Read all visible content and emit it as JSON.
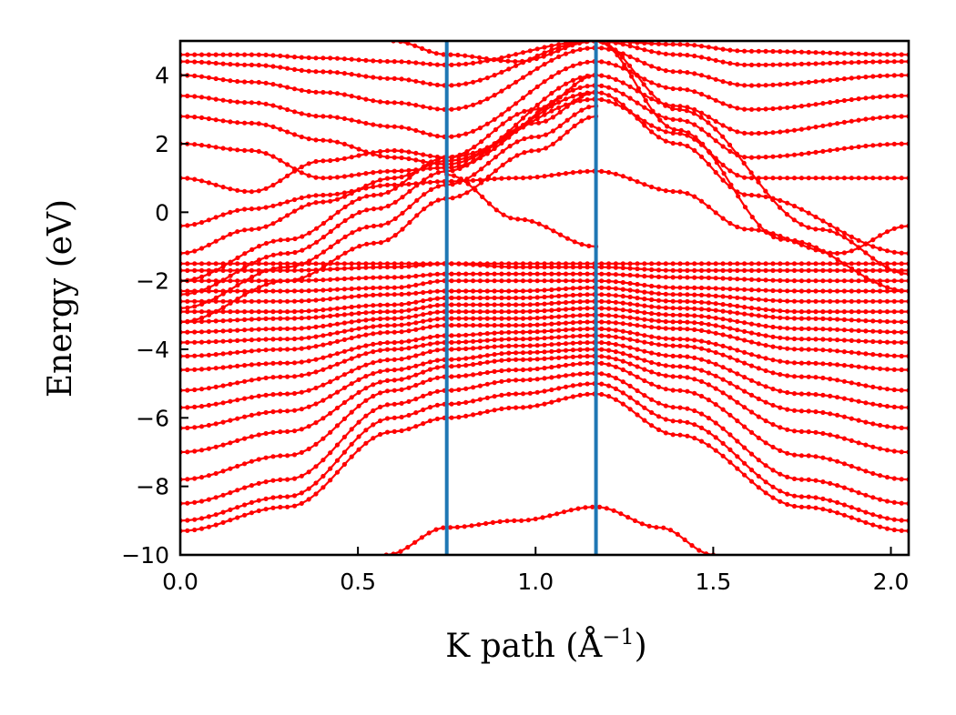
{
  "chart_data": {
    "type": "line",
    "title": "",
    "xlabel": "K path (Å",
    "xlabel_sup": "−1",
    "xlabel_close": ")",
    "ylabel": "Energy (eV)",
    "xlim": [
      0.0,
      2.05
    ],
    "ylim": [
      -10,
      5
    ],
    "xticks": [
      0.0,
      0.5,
      1.0,
      1.5,
      2.0
    ],
    "xtick_labels": [
      "0.0",
      "0.5",
      "1.0",
      "1.5",
      "2.0"
    ],
    "yticks": [
      4,
      2,
      0,
      -2,
      -4,
      -6,
      -8,
      -10
    ],
    "ytick_labels": [
      "4",
      "2",
      "0",
      "−2",
      "−4",
      "−6",
      "−8",
      "−10"
    ],
    "grid": false,
    "band_color": "#ff0000",
    "divider_color": "#1f77b4",
    "high_symmetry_x": [
      0.75,
      1.17
    ],
    "marker": "dot",
    "series": [
      {
        "x": [
          0.0,
          0.3,
          0.6,
          0.75,
          0.95,
          1.17,
          1.4,
          1.75,
          2.05
        ],
        "values": [
          -9.3,
          -8.6,
          -6.4,
          -6.0,
          -5.7,
          -5.3,
          -6.5,
          -8.6,
          -9.3
        ]
      },
      {
        "x": [
          0.0,
          0.3,
          0.6,
          0.75,
          0.95,
          1.17,
          1.4,
          1.75,
          2.05
        ],
        "values": [
          -9.0,
          -8.3,
          -6.0,
          -5.6,
          -5.3,
          -5.0,
          -6.1,
          -8.3,
          -9.0
        ]
      },
      {
        "x": [
          0.0,
          0.3,
          0.6,
          0.75,
          0.95,
          1.17,
          1.4,
          1.75,
          2.05
        ],
        "values": [
          -8.5,
          -7.8,
          -5.6,
          -5.2,
          -4.9,
          -4.7,
          -5.7,
          -7.8,
          -8.5
        ]
      },
      {
        "x": [
          0.0,
          0.3,
          0.6,
          0.75,
          0.95,
          1.17,
          1.4,
          1.75,
          2.05
        ],
        "values": [
          -7.8,
          -7.1,
          -5.2,
          -4.8,
          -4.6,
          -4.4,
          -5.2,
          -7.1,
          -7.8
        ]
      },
      {
        "x": [
          0.0,
          0.3,
          0.6,
          0.75,
          0.95,
          1.17,
          1.4,
          1.75,
          2.05
        ],
        "values": [
          -7.0,
          -6.4,
          -4.9,
          -4.5,
          -4.3,
          -4.2,
          -4.8,
          -6.4,
          -7.0
        ]
      },
      {
        "x": [
          0.0,
          0.3,
          0.6,
          0.75,
          0.95,
          1.17,
          1.4,
          1.75,
          2.05
        ],
        "values": [
          -6.3,
          -5.8,
          -4.6,
          -4.3,
          -4.1,
          -4.0,
          -4.5,
          -5.8,
          -6.3
        ]
      },
      {
        "x": [
          0.0,
          0.3,
          0.6,
          0.75,
          0.95,
          1.17,
          1.4,
          1.75,
          2.05
        ],
        "values": [
          -5.7,
          -5.3,
          -4.3,
          -4.0,
          -3.9,
          -3.8,
          -4.2,
          -5.3,
          -5.7
        ]
      },
      {
        "x": [
          0.0,
          0.3,
          0.6,
          0.75,
          0.95,
          1.17,
          1.4,
          1.75,
          2.05
        ],
        "values": [
          -5.2,
          -4.8,
          -4.0,
          -3.8,
          -3.7,
          -3.6,
          -3.9,
          -4.8,
          -5.2
        ]
      },
      {
        "x": [
          0.0,
          0.3,
          0.6,
          0.75,
          0.95,
          1.17,
          1.4,
          1.75,
          2.05
        ],
        "values": [
          -4.6,
          -4.4,
          -3.8,
          -3.6,
          -3.5,
          -3.4,
          -3.7,
          -4.4,
          -4.6
        ]
      },
      {
        "x": [
          0.0,
          0.3,
          0.6,
          0.75,
          0.95,
          1.17,
          1.4,
          1.75,
          2.05
        ],
        "values": [
          -4.2,
          -4.0,
          -3.5,
          -3.3,
          -3.3,
          -3.2,
          -3.4,
          -4.0,
          -4.2
        ]
      },
      {
        "x": [
          0.0,
          0.3,
          0.6,
          0.75,
          0.95,
          1.17,
          1.4,
          1.75,
          2.05
        ],
        "values": [
          -3.8,
          -3.7,
          -3.3,
          -3.1,
          -3.1,
          -3.0,
          -3.2,
          -3.7,
          -3.8
        ]
      },
      {
        "x": [
          0.0,
          0.3,
          0.6,
          0.75,
          0.95,
          1.17,
          1.4,
          1.75,
          2.05
        ],
        "values": [
          -3.5,
          -3.4,
          -3.1,
          -2.9,
          -2.9,
          -2.8,
          -3.0,
          -3.4,
          -3.5
        ]
      },
      {
        "x": [
          0.0,
          0.3,
          0.6,
          0.75,
          0.95,
          1.17,
          1.4,
          1.75,
          2.05
        ],
        "values": [
          -3.2,
          -3.1,
          -2.9,
          -2.7,
          -2.7,
          -2.6,
          -2.8,
          -3.1,
          -3.2
        ]
      },
      {
        "x": [
          0.0,
          0.3,
          0.6,
          0.75,
          0.95,
          1.17,
          1.4,
          1.75,
          2.05
        ],
        "values": [
          -2.9,
          -2.9,
          -2.7,
          -2.5,
          -2.5,
          -2.4,
          -2.6,
          -2.9,
          -2.9
        ]
      },
      {
        "x": [
          0.0,
          0.3,
          0.6,
          0.75,
          0.95,
          1.17,
          1.4,
          1.75,
          2.05
        ],
        "values": [
          -2.6,
          -2.6,
          -2.4,
          -2.3,
          -2.3,
          -2.2,
          -2.4,
          -2.6,
          -2.6
        ]
      },
      {
        "x": [
          0.0,
          0.3,
          0.6,
          0.75,
          0.95,
          1.17,
          1.4,
          1.75,
          2.05
        ],
        "values": [
          -2.3,
          -2.3,
          -2.2,
          -2.0,
          -2.0,
          -2.0,
          -2.2,
          -2.3,
          -2.3
        ]
      },
      {
        "x": [
          0.0,
          0.3,
          0.6,
          0.75,
          0.95,
          1.17,
          1.4,
          1.75,
          2.05
        ],
        "values": [
          -2.0,
          -2.0,
          -1.9,
          -1.8,
          -1.8,
          -1.8,
          -1.9,
          -2.0,
          -2.0
        ]
      },
      {
        "x": [
          0.0,
          0.3,
          0.6,
          0.75,
          0.95,
          1.17,
          1.4,
          1.75,
          2.05
        ],
        "values": [
          -1.7,
          -1.7,
          -1.6,
          -1.5,
          -1.6,
          -1.6,
          -1.7,
          -1.7,
          -1.7
        ]
      },
      {
        "x": [
          0.0,
          0.3,
          0.6,
          0.75,
          0.95,
          1.17,
          1.4,
          1.75,
          2.05
        ],
        "values": [
          -1.5,
          -1.5,
          -1.5,
          -1.5,
          -1.5,
          -1.5,
          -1.5,
          -1.5,
          -1.5
        ]
      },
      {
        "x": [
          0.0,
          0.2,
          0.4,
          0.6,
          0.75,
          0.95,
          1.17,
          1.4,
          1.6,
          1.85,
          2.05
        ],
        "values": [
          -0.4,
          0.1,
          0.5,
          0.8,
          0.9,
          1.0,
          1.2,
          0.6,
          -0.5,
          -1.2,
          -0.4
        ]
      },
      {
        "x": [
          0.0,
          0.2,
          0.4,
          0.6,
          0.75,
          1.17,
          1.4,
          1.6,
          2.05
        ],
        "values": [
          -1.2,
          -0.5,
          0.3,
          1.0,
          1.5,
          3.5,
          2.0,
          0.5,
          -1.2
        ]
      },
      {
        "x": [
          0.0,
          0.2,
          0.4,
          0.6,
          0.75,
          1.17,
          1.4,
          1.6,
          2.05
        ],
        "values": [
          1.0,
          0.6,
          1.5,
          1.8,
          1.6,
          3.3,
          2.3,
          1.0,
          1.0
        ]
      },
      {
        "x": [
          0.0,
          0.2,
          0.4,
          0.6,
          0.75,
          1.17,
          1.4,
          1.6,
          2.05
        ],
        "values": [
          2.0,
          1.8,
          1.0,
          1.2,
          1.3,
          3.7,
          2.7,
          1.6,
          2.0
        ]
      },
      {
        "x": [
          0.0,
          0.2,
          0.4,
          0.6,
          0.75,
          1.17,
          1.4,
          1.6,
          2.05
        ],
        "values": [
          2.8,
          2.6,
          2.1,
          1.6,
          1.4,
          4.0,
          3.1,
          2.3,
          2.8
        ]
      },
      {
        "x": [
          0.0,
          0.2,
          0.4,
          0.6,
          0.75,
          1.17,
          1.4,
          1.6,
          2.05
        ],
        "values": [
          3.4,
          3.2,
          2.8,
          2.5,
          2.2,
          4.4,
          3.6,
          3.0,
          3.4
        ]
      },
      {
        "x": [
          0.0,
          0.2,
          0.4,
          0.6,
          0.75,
          1.17,
          1.4,
          1.6,
          2.05
        ],
        "values": [
          4.0,
          3.8,
          3.5,
          3.2,
          3.0,
          4.8,
          4.1,
          3.7,
          4.0
        ]
      },
      {
        "x": [
          0.0,
          0.2,
          0.4,
          0.6,
          0.75,
          1.17,
          1.4,
          1.6,
          2.05
        ],
        "values": [
          4.4,
          4.3,
          4.1,
          3.9,
          3.7,
          5.0,
          4.6,
          4.3,
          4.4
        ]
      },
      {
        "x": [
          0.0,
          0.2,
          0.4,
          0.6,
          0.75,
          1.17,
          1.4,
          1.6,
          2.05
        ],
        "values": [
          4.6,
          4.6,
          4.5,
          4.4,
          4.3,
          5.0,
          4.9,
          4.7,
          4.6
        ]
      },
      {
        "x": [
          0.0,
          0.3,
          0.55,
          0.75,
          1.0,
          1.17
        ],
        "values": [
          -2.0,
          -0.8,
          0.5,
          1.6,
          3.0,
          4.0
        ]
      },
      {
        "x": [
          0.0,
          0.3,
          0.55,
          0.75,
          1.0,
          1.17
        ],
        "values": [
          -2.4,
          -1.2,
          0.1,
          1.2,
          2.6,
          3.5
        ]
      },
      {
        "x": [
          0.0,
          0.3,
          0.55,
          0.75,
          1.0,
          1.17
        ],
        "values": [
          -2.8,
          -1.6,
          -0.4,
          0.8,
          2.2,
          3.1
        ]
      },
      {
        "x": [
          0.0,
          0.3,
          0.55,
          0.75,
          1.0,
          1.17
        ],
        "values": [
          -3.2,
          -2.0,
          -0.9,
          0.4,
          1.8,
          2.8
        ]
      },
      {
        "x": [
          0.58,
          0.75,
          0.95,
          1.17,
          1.35,
          1.5
        ],
        "values": [
          -10.0,
          -9.2,
          -9.0,
          -8.6,
          -9.2,
          -10.0
        ]
      },
      {
        "x": [
          0.75,
          0.95,
          1.17
        ],
        "values": [
          1.1,
          -0.2,
          -1.0
        ]
      },
      {
        "x": [
          0.6,
          0.75,
          0.95,
          1.17,
          1.4,
          1.8,
          2.05
        ],
        "values": [
          5.0,
          4.6,
          4.4,
          5.0,
          3.0,
          -0.5,
          -1.8
        ]
      },
      {
        "x": [
          1.17,
          1.4,
          1.7,
          2.05
        ],
        "values": [
          5.0,
          2.4,
          -0.8,
          -2.3
        ]
      }
    ]
  }
}
